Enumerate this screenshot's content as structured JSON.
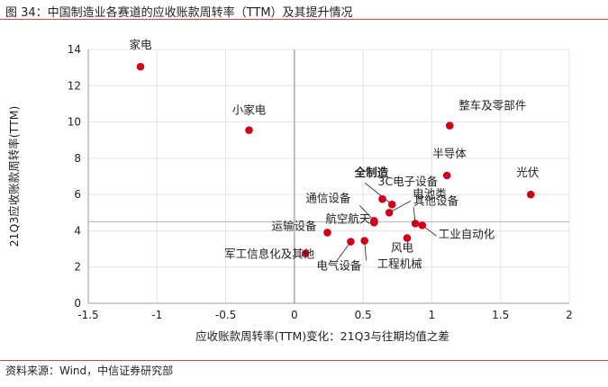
{
  "figure": {
    "title": "图 34：中国制造业各赛道的应收账款周转率（TTM）及其提升情况",
    "source": "资料来源：Wind，中信证券研究部",
    "accent_color": "#c0504d",
    "point_color": "#d0021b"
  },
  "chart_data": {
    "type": "scatter",
    "xlabel": "应收账款周转率(TTM)变化：21Q3与往期均值之差",
    "ylabel": "21Q3应收账款周转率(TTM)",
    "xlim": [
      -1.5,
      2
    ],
    "ylim": [
      0,
      14
    ],
    "xticks": [
      "-1.5",
      "-1",
      "-0.5",
      "0",
      "0.5",
      "1",
      "1.5",
      "2"
    ],
    "yticks": [
      "0",
      "2",
      "4",
      "6",
      "8",
      "10",
      "12",
      "14"
    ],
    "grid": true,
    "reference_lines": {
      "x": 0,
      "y": 4.5
    },
    "points": [
      {
        "label": "家电",
        "x": -1.12,
        "y": 13.05
      },
      {
        "label": "小家电",
        "x": -0.33,
        "y": 9.55
      },
      {
        "label": "整车及零部件",
        "x": 1.13,
        "y": 9.8
      },
      {
        "label": "半导体",
        "x": 1.11,
        "y": 7.05
      },
      {
        "label": "光伏",
        "x": 1.72,
        "y": 6.0
      },
      {
        "label": "3C电子设备",
        "x": 0.64,
        "y": 5.75
      },
      {
        "label": "全制造",
        "x": 0.71,
        "y": 5.45,
        "bold": true
      },
      {
        "label": "电池类",
        "x": 0.69,
        "y": 5.0
      },
      {
        "label": "通信设备",
        "x": 0.58,
        "y": 4.55
      },
      {
        "label": "航空航天",
        "x": 0.58,
        "y": 4.45
      },
      {
        "label": "其他设备",
        "x": 0.88,
        "y": 4.4
      },
      {
        "label": "工业自动化",
        "x": 0.93,
        "y": 4.3
      },
      {
        "label": "运输设备",
        "x": 0.24,
        "y": 3.9
      },
      {
        "label": "风电",
        "x": 0.82,
        "y": 3.6
      },
      {
        "label": "电气设备",
        "x": 0.41,
        "y": 3.4
      },
      {
        "label": "工程机械",
        "x": 0.51,
        "y": 3.45
      },
      {
        "label": "军工信息化及其他",
        "x": 0.08,
        "y": 2.75
      }
    ]
  }
}
